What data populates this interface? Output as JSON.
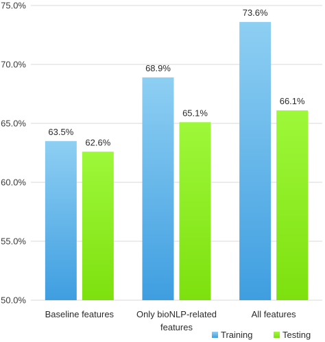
{
  "chart_data": {
    "type": "bar",
    "categories": [
      "Baseline features",
      "Only bioNLP-related features",
      "All features"
    ],
    "category_lines": [
      [
        "Baseline features"
      ],
      [
        "Only bioNLP-related",
        "features"
      ],
      [
        "All features"
      ]
    ],
    "series": [
      {
        "name": "Training",
        "values": [
          63.5,
          68.9,
          73.6
        ],
        "labels": [
          "63.5%",
          "68.9%",
          "73.6%"
        ],
        "color_top": "#8ecff3",
        "color_bottom": "#3f9ee0"
      },
      {
        "name": "Testing",
        "values": [
          62.6,
          65.1,
          66.1
        ],
        "labels": [
          "62.6%",
          "65.1%",
          "66.1%"
        ],
        "color_top": "#9ef83a",
        "color_bottom": "#7de00e"
      }
    ],
    "ylim": [
      50,
      75
    ],
    "yticks": [
      50,
      55,
      60,
      65,
      70,
      75
    ],
    "ytick_labels": [
      "50.0%",
      "55.0%",
      "60.0%",
      "65.0%",
      "70.0%",
      "75.0%"
    ],
    "title": "",
    "xlabel": "",
    "ylabel": "",
    "grid": true,
    "legend_position": "bottom-right",
    "gridline_color": "#d9d9d9"
  }
}
